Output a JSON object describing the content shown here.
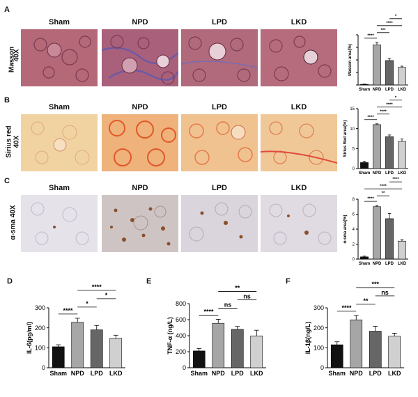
{
  "panels": {
    "A": {
      "letter": "A",
      "row_label_1": "Masson",
      "row_label_2": "40X"
    },
    "B": {
      "letter": "B",
      "row_label_1": "Sirius red",
      "row_label_2": "40X"
    },
    "C": {
      "letter": "C",
      "row_label_1": "α-sma 40X"
    },
    "D": {
      "letter": "D"
    },
    "E": {
      "letter": "E"
    },
    "F": {
      "letter": "F"
    }
  },
  "groups": [
    "Sham",
    "NPD",
    "LPD",
    "LKD"
  ],
  "colors": {
    "sham": "#111111",
    "npd": "#a6a6a6",
    "lpd": "#666666",
    "lkd": "#d0d0d0",
    "masson_base": "#b36a7a",
    "masson_fiber": "#6b5aa6",
    "sirius_base": "#f0c89a",
    "sirius_fiber": "#e2582a",
    "sma_base": "#d9d4dc",
    "sma_stain": "#8a4f2a"
  },
  "chart_data": [
    {
      "id": "A",
      "type": "bar",
      "categories": [
        "Sham",
        "NPD",
        "LPD",
        "LKD"
      ],
      "values": [
        0.1,
        6.4,
        3.9,
        2.8
      ],
      "errors": [
        0.05,
        0.4,
        0.35,
        0.2
      ],
      "ylabel": "Masson area(%)",
      "ylim": [
        0,
        8
      ],
      "yticks": [
        0,
        2,
        4,
        6,
        8
      ],
      "show_tick_labels": false,
      "significance": [
        {
          "from": 0,
          "to": 1,
          "label": "****"
        },
        {
          "from": 1,
          "to": 2,
          "label": "***"
        },
        {
          "from": 1,
          "to": 3,
          "label": "****"
        },
        {
          "from": 2,
          "to": 3,
          "label": "*"
        }
      ]
    },
    {
      "id": "B",
      "type": "bar",
      "categories": [
        "Sham",
        "NPD",
        "LPD",
        "LKD"
      ],
      "values": [
        1.5,
        11,
        8,
        6.8
      ],
      "errors": [
        0.3,
        0.2,
        0.4,
        0.6
      ],
      "ylabel": "Sirius Red area(%)",
      "ylim": [
        0,
        15
      ],
      "yticks": [
        0,
        5,
        10,
        15
      ],
      "show_tick_labels": true,
      "significance": [
        {
          "from": 0,
          "to": 1,
          "label": "****"
        },
        {
          "from": 1,
          "to": 2,
          "label": "****"
        },
        {
          "from": 1,
          "to": 3,
          "label": "****"
        },
        {
          "from": 2,
          "to": 3,
          "label": "*"
        }
      ]
    },
    {
      "id": "C",
      "type": "bar",
      "categories": [
        "Sham",
        "NPD",
        "LPD",
        "LKD"
      ],
      "values": [
        0.3,
        7.0,
        5.4,
        2.4
      ],
      "errors": [
        0.1,
        0.15,
        0.7,
        0.2
      ],
      "ylabel": "α-sma area(%)",
      "ylim": [
        0,
        8
      ],
      "yticks": [
        0,
        2,
        4,
        6,
        8
      ],
      "show_tick_labels": true,
      "significance": [
        {
          "from": 0,
          "to": 1,
          "label": "****"
        },
        {
          "from": 1,
          "to": 2,
          "label": "**"
        },
        {
          "from": 0,
          "to": 3,
          "label": "****"
        },
        {
          "from": 2,
          "to": 3,
          "label": "****"
        }
      ]
    },
    {
      "id": "D",
      "type": "bar",
      "categories": [
        "Sham",
        "NPD",
        "LPD",
        "LKD"
      ],
      "values": [
        105,
        228,
        190,
        148
      ],
      "errors": [
        10,
        20,
        22,
        15
      ],
      "ylabel": "IL-6(pg/ml)",
      "ylim": [
        0,
        300
      ],
      "yticks": [
        0,
        100,
        200,
        300
      ],
      "show_tick_labels": true,
      "significance": [
        {
          "from": 0,
          "to": 1,
          "label": "****"
        },
        {
          "from": 1,
          "to": 2,
          "label": "*"
        },
        {
          "from": 2,
          "to": 3,
          "label": "*"
        },
        {
          "from": 1,
          "to": 3,
          "label": "****"
        }
      ]
    },
    {
      "id": "E",
      "type": "bar",
      "categories": [
        "Sham",
        "NPD",
        "LPD",
        "LKD"
      ],
      "values": [
        210,
        555,
        480,
        398
      ],
      "errors": [
        30,
        50,
        35,
        70
      ],
      "ylabel": "TNF-α (ng/L)",
      "ylim": [
        0,
        800
      ],
      "yticks": [
        0,
        200,
        400,
        600,
        800
      ],
      "show_tick_labels": true,
      "significance": [
        {
          "from": 0,
          "to": 1,
          "label": "****"
        },
        {
          "from": 1,
          "to": 2,
          "label": "ns"
        },
        {
          "from": 2,
          "to": 3,
          "label": "ns"
        },
        {
          "from": 1,
          "to": 3,
          "label": "**"
        }
      ]
    },
    {
      "id": "F",
      "type": "bar",
      "categories": [
        "Sham",
        "NPD",
        "LPD",
        "LKD"
      ],
      "values": [
        115,
        240,
        183,
        158
      ],
      "errors": [
        15,
        22,
        25,
        15
      ],
      "ylabel": "IL-1β(ng/L)",
      "ylim": [
        0,
        300
      ],
      "yticks": [
        0,
        100,
        200,
        300
      ],
      "show_tick_labels": true,
      "significance": [
        {
          "from": 0,
          "to": 1,
          "label": "****"
        },
        {
          "from": 1,
          "to": 2,
          "label": "**"
        },
        {
          "from": 2,
          "to": 3,
          "label": "ns"
        },
        {
          "from": 1,
          "to": 3,
          "label": "***"
        }
      ]
    }
  ]
}
